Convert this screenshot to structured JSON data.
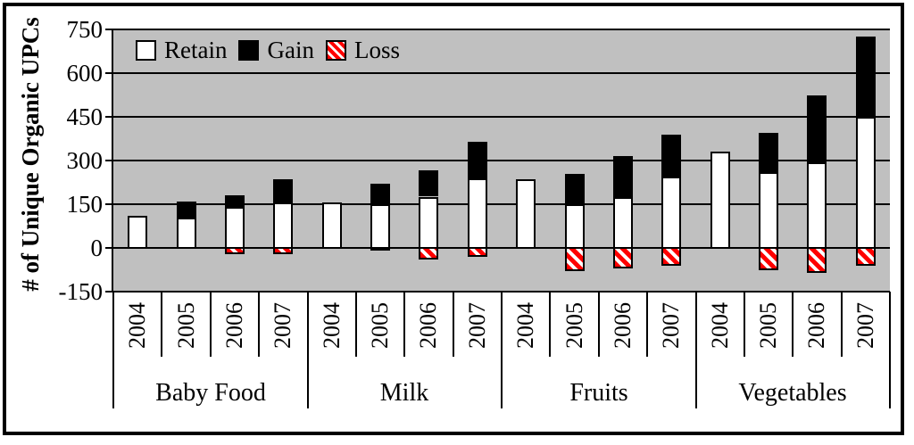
{
  "chart_data": {
    "type": "bar",
    "stacked": true,
    "title": "",
    "ylabel": "# of Unique Organic UPCs",
    "xlabel": "",
    "ylim": [
      -150,
      750
    ],
    "yticks": [
      750,
      600,
      450,
      300,
      150,
      0,
      -150
    ],
    "grid": true,
    "plot_background": "#C0C0C0",
    "legend_position": "top-left-inside",
    "legend": [
      {
        "label": "Retain",
        "swatch": "retain"
      },
      {
        "label": "Gain",
        "swatch": "gain"
      },
      {
        "label": "Loss",
        "swatch": "loss"
      }
    ],
    "year_labels": [
      "2004",
      "2005",
      "2006",
      "2007"
    ],
    "groups": [
      {
        "label": "Baby Food",
        "retain": [
          110,
          105,
          140,
          155
        ],
        "gain": [
          0,
          55,
          40,
          80
        ],
        "loss": [
          0,
          0,
          -20,
          -20
        ]
      },
      {
        "label": "Milk",
        "retain": [
          155,
          150,
          175,
          240
        ],
        "gain": [
          0,
          70,
          90,
          125
        ],
        "loss": [
          0,
          -10,
          -40,
          -30
        ]
      },
      {
        "label": "Fruits",
        "retain": [
          235,
          150,
          175,
          245
        ],
        "gain": [
          0,
          105,
          140,
          145
        ],
        "loss": [
          0,
          -80,
          -70,
          -60
        ]
      },
      {
        "label": "Vegetables",
        "retain": [
          330,
          260,
          295,
          450
        ],
        "gain": [
          0,
          135,
          230,
          275
        ],
        "loss": [
          0,
          -75,
          -85,
          -60
        ]
      }
    ],
    "colors": {
      "retain": "#FFFFFF",
      "gain": "#000000",
      "loss": "#FF0000",
      "axis": "#000000"
    }
  }
}
